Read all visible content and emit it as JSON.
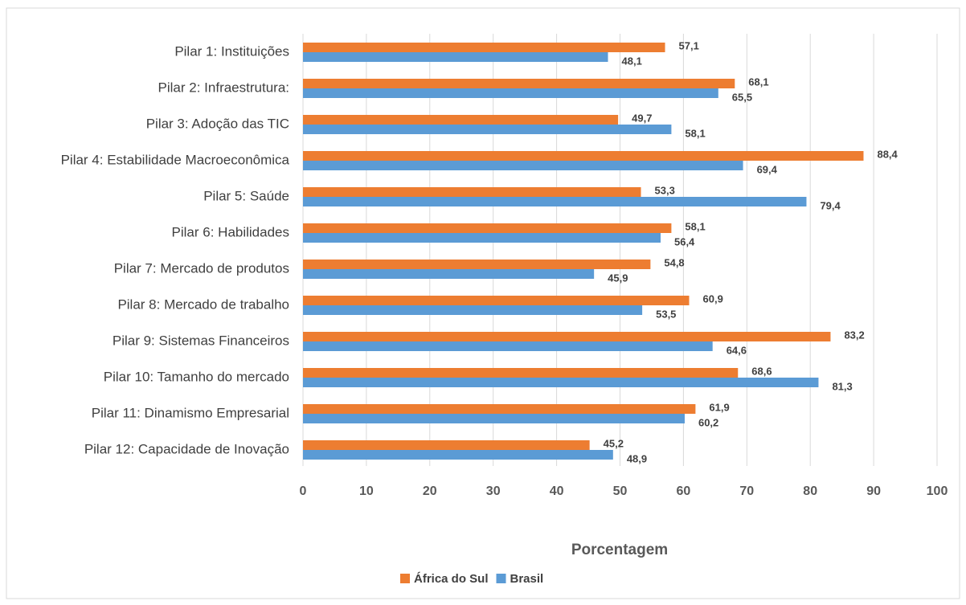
{
  "chart_data": {
    "type": "barh",
    "categories": [
      "Pilar 1: Instituições",
      "Pilar 2: Infraestrutura:",
      "Pilar 3: Adoção das TIC",
      "Pilar 4: Estabilidade Macroeconômica",
      "Pilar 5: Saúde",
      "Pilar 6: Habilidades",
      "Pilar 7: Mercado de produtos",
      "Pilar 8: Mercado de trabalho",
      "Pilar 9: Sistemas Financeiros",
      "Pilar 10: Tamanho do mercado",
      "Pilar 11: Dinamismo Empresarial",
      "Pilar 12: Capacidade de Inovação"
    ],
    "series": [
      {
        "name": "África do Sul",
        "color": "#ed7d31",
        "values": [
          57.1,
          68.1,
          49.7,
          88.4,
          53.3,
          58.1,
          54.8,
          60.9,
          83.2,
          68.6,
          61.9,
          45.2
        ],
        "value_labels": [
          "57,1",
          "68,1",
          "49,7",
          "88,4",
          "53,3",
          "58,1",
          "54,8",
          "60,9",
          "83,2",
          "68,6",
          "61,9",
          "45,2"
        ]
      },
      {
        "name": "Brasil",
        "color": "#5b9bd5",
        "values": [
          48.1,
          65.5,
          58.1,
          69.4,
          79.4,
          56.4,
          45.9,
          53.5,
          64.6,
          81.3,
          60.2,
          48.9
        ],
        "value_labels": [
          "48,1",
          "65,5",
          "58,1",
          "69,4",
          "79,4",
          "56,4",
          "45,9",
          "53,5",
          "64,6",
          "81,3",
          "60,2",
          "48,9"
        ]
      }
    ],
    "xlabel": "Porcentagem",
    "xlim": [
      0,
      100
    ],
    "xticks": [
      0,
      10,
      20,
      30,
      40,
      50,
      60,
      70,
      80,
      90,
      100
    ],
    "grid": true,
    "legend": "bottom"
  }
}
